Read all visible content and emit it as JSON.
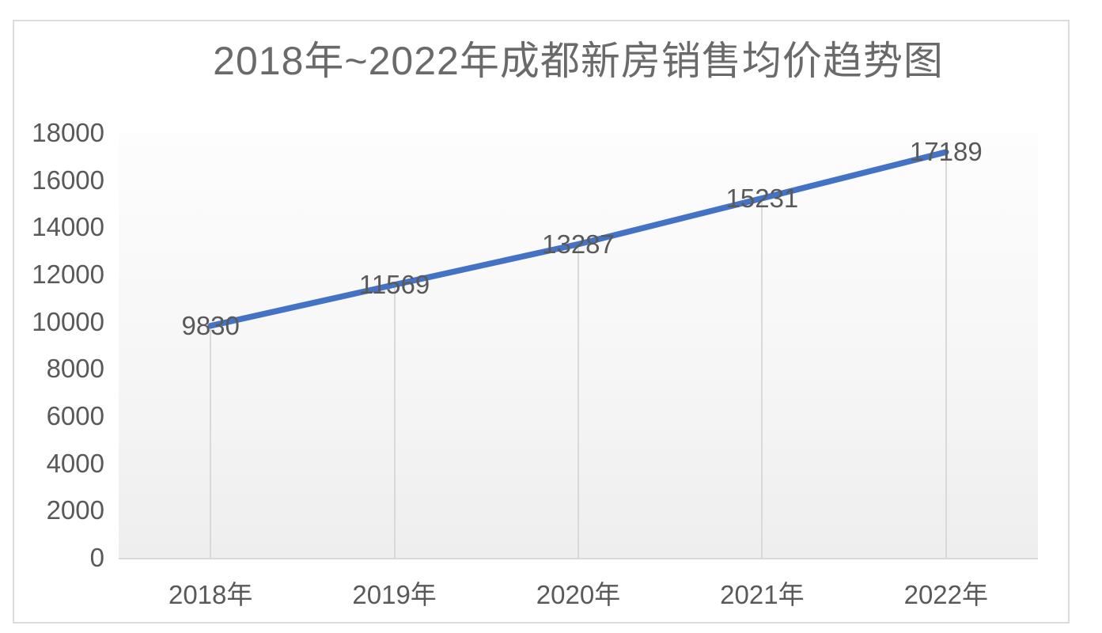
{
  "chart_data": {
    "type": "line",
    "title": "2018年~2022年成都新房销售均价趋势图",
    "categories": [
      "2018年",
      "2019年",
      "2020年",
      "2021年",
      "2022年"
    ],
    "values": [
      9830,
      11569,
      13287,
      15231,
      17189
    ],
    "y_ticks": [
      0,
      2000,
      4000,
      6000,
      8000,
      10000,
      12000,
      14000,
      16000,
      18000
    ],
    "ylim": [
      0,
      18000
    ],
    "xlabel": "",
    "ylabel": "",
    "legend": "none",
    "grid": "vertical-droplines-under-points",
    "data_label_position": "center-on-point",
    "colors": {
      "line": "#4472c4",
      "axis_text": "#595959",
      "data_label_text": "#595959",
      "title_text": "#6a6a6a",
      "dropline": "#d9d9d9",
      "axis_line": "#d9d9d9",
      "frame_border": "#dcdcdc"
    }
  }
}
